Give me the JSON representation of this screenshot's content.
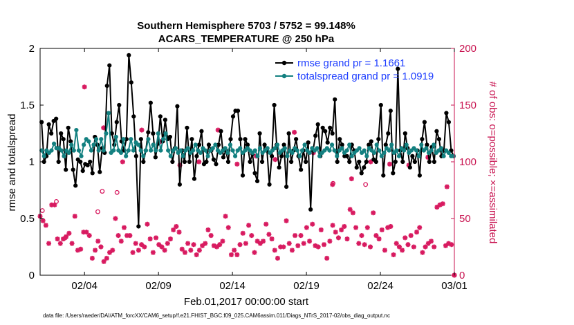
{
  "chart_data": {
    "type": "line",
    "title_line1": "Southern Hemisphere 5703 / 5752 = 99.148%",
    "title_line2": "ACARS_TEMPERATURE @ 250 hPa",
    "xlabel": "Feb.01,2017 00:00:00 start",
    "ylabel_left": "rmse and totalspread",
    "ylabel_right": "# of obs: o=possible; ×=assimilated",
    "footnote": "data file: /Users/raeder/DAI/ATM_forcXX/CAM6_setup/f.e21.FHIST_BGC.f09_025.CAM6assim.011/Diags_NTrS_2017-02/obs_diag_output.nc",
    "xlim": [
      0,
      28
    ],
    "ylim_left": [
      0,
      2
    ],
    "ylim_right": [
      0,
      200
    ],
    "x_ticks": [
      {
        "x": 3,
        "label": "02/04"
      },
      {
        "x": 8,
        "label": "02/09"
      },
      {
        "x": 13,
        "label": "02/14"
      },
      {
        "x": 18,
        "label": "02/19"
      },
      {
        "x": 23,
        "label": "02/24"
      },
      {
        "x": 28,
        "label": "03/01"
      }
    ],
    "y_ticks_left": [
      {
        "v": 0,
        "label": "0"
      },
      {
        "v": 0.5,
        "label": "0.5"
      },
      {
        "v": 1,
        "label": "1"
      },
      {
        "v": 1.5,
        "label": "1.5"
      },
      {
        "v": 2,
        "label": "2"
      }
    ],
    "y_ticks_right": [
      {
        "v": 0,
        "label": "0"
      },
      {
        "v": 50,
        "label": "50"
      },
      {
        "v": 100,
        "label": "100"
      },
      {
        "v": 150,
        "label": "150"
      },
      {
        "v": 200,
        "label": "200"
      }
    ],
    "colors": {
      "rmse": "#000000",
      "spread": "#138080",
      "obs": "#d81b60",
      "axisRight": "#c8124f",
      "legendText": "#1f3fff"
    },
    "series": [
      {
        "name": "rmse grand pr = 1.1661",
        "values": [
          1.35,
          1.0,
          1.05,
          1.33,
          1.25,
          1.36,
          1.38,
          1.0,
          1.25,
          1.2,
          0.93,
          1.3,
          1.18,
          0.93,
          0.79,
          1.02,
          1.0,
          0.92,
          0.98,
          0.97,
          1.0,
          0.9,
          1.22,
          1.15,
          0.91,
          1.12,
          1.08,
          1.67,
          1.85,
          1.25,
          1.15,
          1.35,
          1.5,
          1.18,
          1.1,
          1.2,
          1.94,
          1.7,
          1.4,
          1.05,
          0.43,
          1.2,
          1.0,
          1.1,
          1.26,
          1.52,
          1.25,
          1.04,
          1.16,
          1.4,
          1.18,
          1.37,
          1.2,
          1.22,
          1.0,
          1.12,
          1.49,
          0.8,
          1.1,
          1.0,
          1.3,
          1.0,
          1.2,
          0.85,
          1.05,
          1.15,
          1.27,
          0.98,
          1.0,
          1.15,
          1.1,
          1.02,
          0.98,
          1.15,
          1.27,
          1.04,
          1.1,
          1.0,
          1.2,
          1.4,
          1.45,
          1.45,
          1.2,
          0.88,
          1.2,
          1.15,
          1.0,
          1.07,
          0.9,
          0.83,
          1.25,
          1.0,
          1.15,
          1.1,
          0.8,
          1.05,
          1.5,
          1.15,
          0.95,
          1.05,
          1.15,
          0.78,
          1.25,
          1.0,
          1.1,
          1.2,
          1.05,
          0.93,
          1.1,
          1.0,
          1.17,
          0.58,
          1.1,
          1.23,
          1.33,
          1.05,
          1.3,
          1.27,
          1.17,
          1.3,
          1.25,
          1.55,
          1.0,
          1.2,
          1.15,
          1.05,
          1.05,
          1.0,
          1.15,
          1.1,
          0.95,
          1.0,
          0.9,
          0.95,
          1.0,
          1.15,
          1.18,
          1.02,
          1.0,
          1.2,
          1.5,
          0.88,
          1.15,
          1.25,
          1.45,
          0.9,
          1.0,
          1.82,
          1.1,
          1.0,
          1.25,
          1.12,
          0.95,
          1.05,
          1.0,
          1.1,
          0.88,
          1.2,
          1.35,
          1.15,
          1.0,
          1.13,
          1.0,
          1.27,
          1.2,
          1.05,
          1.1,
          1.43,
          1.35,
          1.1,
          1.05
        ]
      },
      {
        "name": "totalspread grand pr = 1.0919",
        "values": [
          1.1,
          1.05,
          1.1,
          1.08,
          1.1,
          1.16,
          1.12,
          1.12,
          1.1,
          1.05,
          1.1,
          1.08,
          1.15,
          1.1,
          1.28,
          1.1,
          1.05,
          1.15,
          1.2,
          1.18,
          1.1,
          1.15,
          1.2,
          1.1,
          1.2,
          1.1,
          1.25,
          1.43,
          1.08,
          1.1,
          1.22,
          1.1,
          1.08,
          1.2,
          1.05,
          1.1,
          1.2,
          1.1,
          1.17,
          1.15,
          1.1,
          1.05,
          1.1,
          1.2,
          1.1,
          1.15,
          1.1,
          1.25,
          1.1,
          1.2,
          1.25,
          1.1,
          1.05,
          1.1,
          1.12,
          1.08,
          1.1,
          1.05,
          1.1,
          1.12,
          1.08,
          1.1,
          1.15,
          1.1,
          1.08,
          1.12,
          1.1,
          1.05,
          1.1,
          1.12,
          1.15,
          1.1,
          1.08,
          1.1,
          1.12,
          1.08,
          1.15,
          1.1,
          1.05,
          1.1,
          1.12,
          1.08,
          1.1,
          1.12,
          1.1,
          1.08,
          1.1,
          1.05,
          1.12,
          1.08,
          1.1,
          1.12,
          1.08,
          1.1,
          1.12,
          1.15,
          1.08,
          1.1,
          1.12,
          1.05,
          1.1,
          1.08,
          1.12,
          1.1,
          1.05,
          1.1,
          1.15,
          1.1,
          1.08,
          1.12,
          1.1,
          1.12,
          1.05,
          1.08,
          1.1,
          1.12,
          1.1,
          1.15,
          1.1,
          1.05,
          1.1,
          1.12,
          1.08,
          1.1,
          1.15,
          1.05,
          1.08,
          1.1,
          1.12,
          1.08,
          1.1,
          1.05,
          1.12,
          1.1,
          1.08,
          1.15,
          1.1,
          1.05,
          1.08,
          1.12,
          1.1,
          1.15,
          1.08,
          1.1,
          1.05,
          1.12,
          1.1,
          1.15,
          1.08,
          1.1,
          1.12,
          1.1,
          1.05,
          1.15,
          1.1,
          1.12,
          1.08,
          1.1,
          1.15,
          1.08,
          1.1,
          1.12,
          1.05,
          1.1,
          1.08,
          1.05,
          1.05
        ]
      }
    ],
    "obs_assimilated": [
      52,
      48,
      44,
      28,
      62,
      62,
      32,
      28,
      32,
      34,
      37,
      28,
      52,
      22,
      23,
      38,
      38,
      35,
      15,
      22,
      30,
      25,
      12,
      15,
      20,
      22,
      50,
      35,
      30,
      42,
      35,
      35,
      20,
      28,
      22,
      27,
      25,
      45,
      32,
      20,
      33,
      27,
      25,
      22,
      28,
      32,
      40,
      43,
      38,
      23,
      20,
      28,
      22,
      27,
      18,
      22,
      26,
      28,
      40,
      35,
      26,
      25,
      27,
      30,
      52,
      42,
      18,
      22,
      18,
      27,
      37,
      28,
      44,
      35,
      20,
      30,
      28,
      30,
      45,
      36,
      32,
      22,
      15,
      25,
      25,
      48,
      28,
      22,
      35,
      26,
      35,
      28,
      42,
      30,
      45,
      26,
      25,
      40,
      27,
      15,
      30,
      44,
      38,
      33,
      40,
      43,
      32,
      58,
      55,
      42,
      28,
      35,
      27,
      42,
      25,
      55,
      35,
      32,
      40,
      22,
      42,
      43,
      18,
      28,
      25,
      22,
      33,
      27,
      35,
      25,
      38,
      42,
      20,
      25,
      28,
      30,
      25,
      60,
      62,
      63,
      26,
      28,
      27,
      0
    ],
    "obs_possible": [
      57,
      65,
      33,
      74,
      56,
      73,
      81,
      80
    ],
    "obs_high_markers": [
      166,
      130,
      100,
      128,
      118,
      97,
      100,
      128,
      98,
      105,
      102,
      126,
      108,
      80,
      85,
      100,
      98,
      97,
      104,
      78
    ]
  }
}
